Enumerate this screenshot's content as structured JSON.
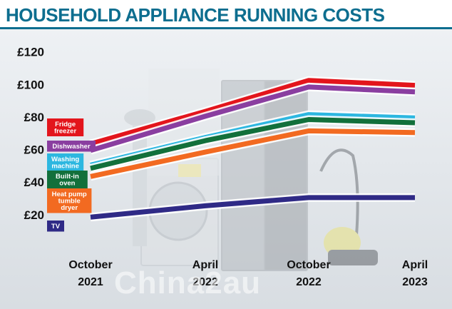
{
  "chart_data": {
    "type": "line",
    "title": "HOUSEHOLD APPLIANCE RUNNING COSTS",
    "xlabel": "",
    "ylabel": "",
    "y_tick_labels": [
      "£20",
      "£40",
      "£60",
      "£80",
      "£100",
      "£120"
    ],
    "y_ticks": [
      20,
      40,
      60,
      80,
      100,
      120
    ],
    "ylim": [
      12,
      126
    ],
    "categories": [
      [
        "October",
        "2021"
      ],
      [
        "April",
        "2022"
      ],
      [
        "October",
        "2022"
      ],
      [
        "April",
        "2023"
      ]
    ],
    "series": [
      {
        "name": "Fridge freezer",
        "label_lines": [
          "Fridge",
          "freezer"
        ],
        "color": "#e3151c",
        "values": [
          63,
          83,
          102,
          99
        ]
      },
      {
        "name": "Dishwasher",
        "label_lines": [
          "Dishwasher"
        ],
        "color": "#8a3ea0",
        "values": [
          59,
          80,
          98,
          95
        ]
      },
      {
        "name": "Washing machine",
        "label_lines": [
          "Washing",
          "machine"
        ],
        "color": "#2db7e0",
        "values": [
          50,
          67,
          81,
          79
        ]
      },
      {
        "name": "Built-in oven",
        "label_lines": [
          "Built-in",
          "oven"
        ],
        "color": "#12703b",
        "values": [
          48,
          65,
          78,
          76
        ]
      },
      {
        "name": "Heat pump tumble dryer",
        "label_lines": [
          "Heat pump",
          "tumble",
          "dryer"
        ],
        "color": "#f26a21",
        "values": [
          43,
          58,
          71,
          70
        ]
      },
      {
        "name": "TV",
        "label_lines": [
          "TV"
        ],
        "color": "#2f2a86",
        "values": [
          18,
          25,
          30,
          30
        ]
      }
    ]
  },
  "watermark": "China2au"
}
